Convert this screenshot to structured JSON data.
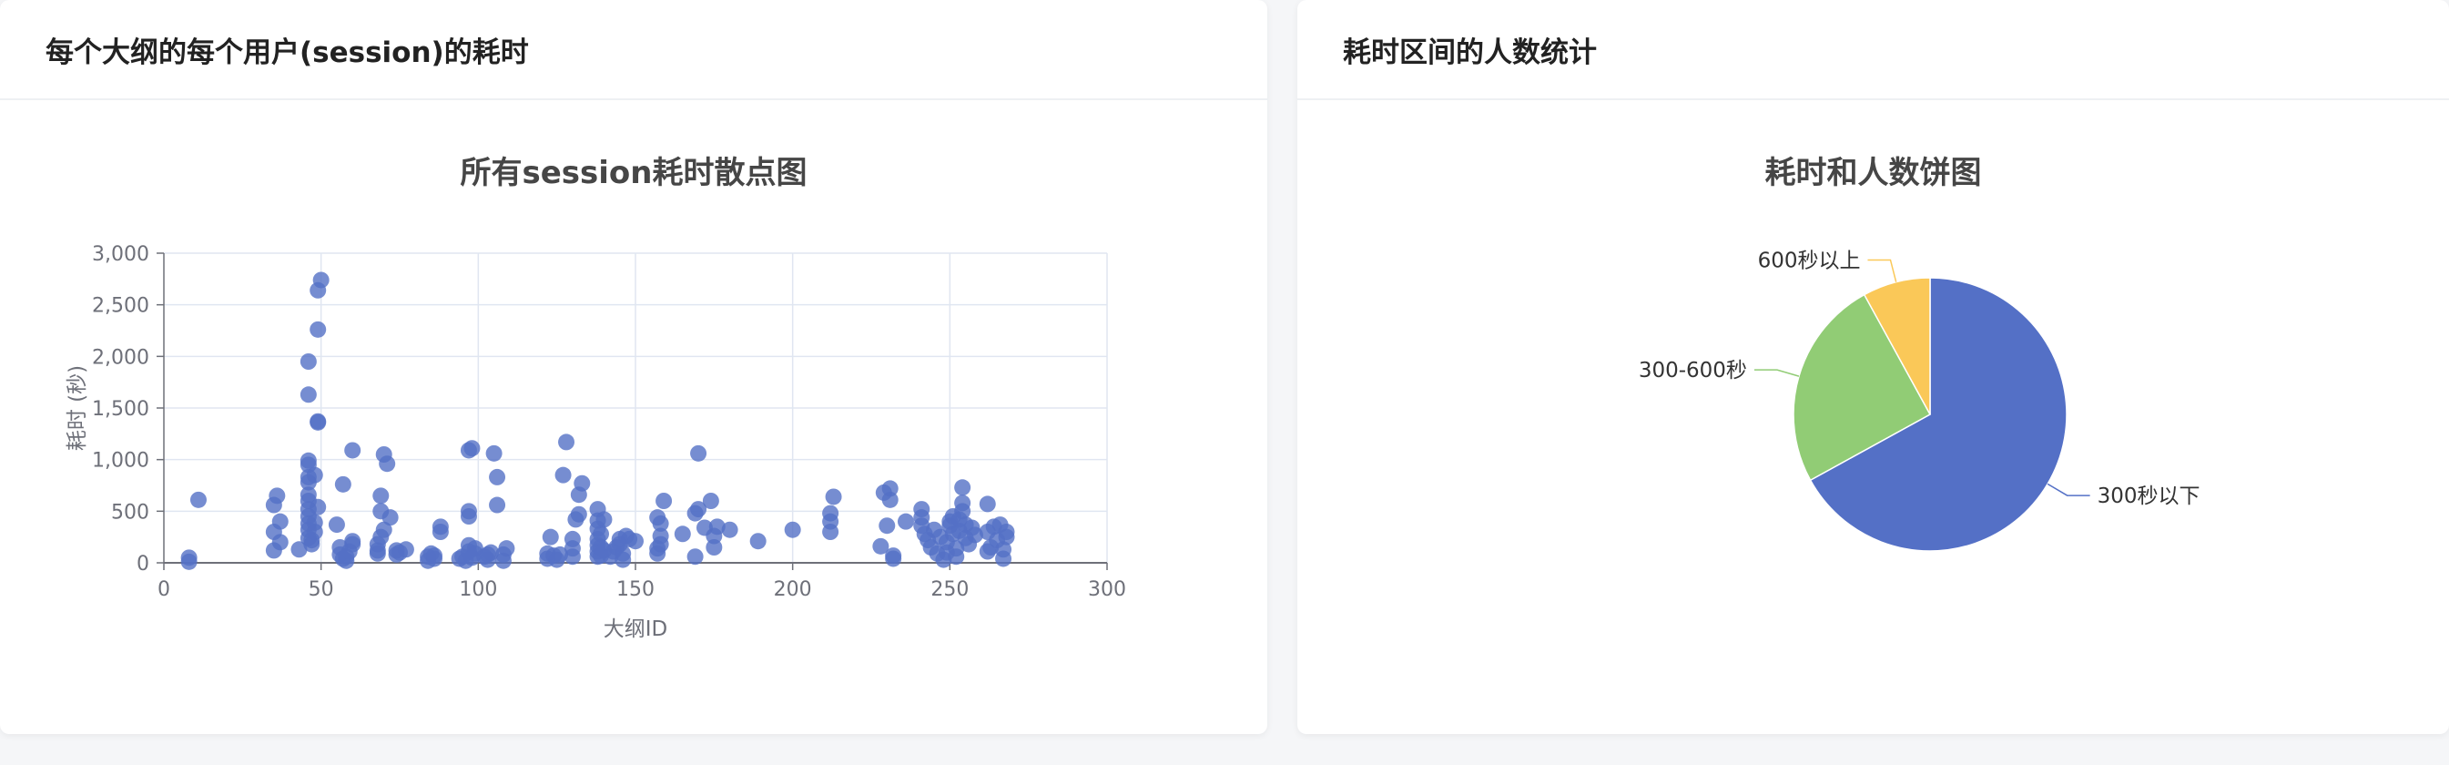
{
  "colors": {
    "blue": "#5470c6",
    "green": "#91cc75",
    "yellow": "#fac858",
    "grid": "#e0e6f1",
    "axis": "#6e7079"
  },
  "left_card": {
    "header": "每个大纲的每个用户(session)的耗时"
  },
  "right_card": {
    "header": "耗时区间的人数统计"
  },
  "chart_data": [
    {
      "type": "scatter",
      "title": "所有session耗时散点图",
      "xlabel": "大纲ID",
      "ylabel": "耗时 (秒)",
      "xlim": [
        0,
        300
      ],
      "ylim": [
        0,
        3000
      ],
      "x_ticks": [
        "0",
        "50",
        "100",
        "150",
        "200",
        "250",
        "300"
      ],
      "y_ticks": [
        "0",
        "500",
        "1,000",
        "1,500",
        "2,000",
        "2,500",
        "3,000"
      ],
      "grid": true,
      "color": "#5470c6",
      "points": [
        [
          8,
          10
        ],
        [
          8,
          50
        ],
        [
          11,
          610
        ],
        [
          35,
          120
        ],
        [
          35,
          300
        ],
        [
          35,
          560
        ],
        [
          36,
          650
        ],
        [
          37,
          200
        ],
        [
          37,
          400
        ],
        [
          43,
          130
        ],
        [
          46,
          240
        ],
        [
          46,
          320
        ],
        [
          46,
          380
        ],
        [
          46,
          450
        ],
        [
          46,
          520
        ],
        [
          46,
          600
        ],
        [
          46,
          660
        ],
        [
          46,
          780
        ],
        [
          46,
          830
        ],
        [
          46,
          950
        ],
        [
          46,
          990
        ],
        [
          46,
          1630
        ],
        [
          46,
          1950
        ],
        [
          47,
          180
        ],
        [
          47,
          220
        ],
        [
          48,
          300
        ],
        [
          48,
          390
        ],
        [
          48,
          850
        ],
        [
          49,
          540
        ],
        [
          49,
          1360
        ],
        [
          49,
          1370
        ],
        [
          49,
          2260
        ],
        [
          49,
          2640
        ],
        [
          50,
          2740
        ],
        [
          55,
          370
        ],
        [
          56,
          80
        ],
        [
          56,
          150
        ],
        [
          57,
          40
        ],
        [
          57,
          760
        ],
        [
          58,
          20
        ],
        [
          58,
          60
        ],
        [
          59,
          110
        ],
        [
          60,
          180
        ],
        [
          60,
          210
        ],
        [
          60,
          1090
        ],
        [
          68,
          90
        ],
        [
          68,
          120
        ],
        [
          68,
          180
        ],
        [
          69,
          250
        ],
        [
          69,
          650
        ],
        [
          69,
          500
        ],
        [
          70,
          320
        ],
        [
          70,
          1050
        ],
        [
          71,
          960
        ],
        [
          72,
          440
        ],
        [
          74,
          80
        ],
        [
          74,
          120
        ],
        [
          75,
          100
        ],
        [
          77,
          130
        ],
        [
          84,
          20
        ],
        [
          84,
          60
        ],
        [
          85,
          90
        ],
        [
          86,
          40
        ],
        [
          86,
          70
        ],
        [
          88,
          300
        ],
        [
          88,
          350
        ],
        [
          94,
          40
        ],
        [
          95,
          60
        ],
        [
          96,
          20
        ],
        [
          97,
          110
        ],
        [
          97,
          170
        ],
        [
          97,
          450
        ],
        [
          97,
          500
        ],
        [
          97,
          1090
        ],
        [
          98,
          1110
        ],
        [
          98,
          50
        ],
        [
          99,
          90
        ],
        [
          99,
          140
        ],
        [
          102,
          60
        ],
        [
          103,
          30
        ],
        [
          103,
          80
        ],
        [
          104,
          100
        ],
        [
          105,
          1060
        ],
        [
          106,
          560
        ],
        [
          106,
          830
        ],
        [
          108,
          20
        ],
        [
          108,
          80
        ],
        [
          109,
          140
        ],
        [
          122,
          40
        ],
        [
          122,
          90
        ],
        [
          123,
          250
        ],
        [
          124,
          70
        ],
        [
          125,
          30
        ],
        [
          126,
          80
        ],
        [
          127,
          850
        ],
        [
          128,
          1170
        ],
        [
          130,
          60
        ],
        [
          130,
          140
        ],
        [
          130,
          230
        ],
        [
          131,
          420
        ],
        [
          132,
          470
        ],
        [
          132,
          660
        ],
        [
          133,
          770
        ],
        [
          138,
          60
        ],
        [
          138,
          110
        ],
        [
          138,
          170
        ],
        [
          138,
          230
        ],
        [
          138,
          330
        ],
        [
          138,
          410
        ],
        [
          138,
          520
        ],
        [
          139,
          70
        ],
        [
          139,
          150
        ],
        [
          139,
          280
        ],
        [
          140,
          120
        ],
        [
          140,
          420
        ],
        [
          142,
          60
        ],
        [
          143,
          110
        ],
        [
          144,
          150
        ],
        [
          145,
          180
        ],
        [
          145,
          230
        ],
        [
          146,
          30
        ],
        [
          146,
          90
        ],
        [
          147,
          260
        ],
        [
          148,
          230
        ],
        [
          150,
          210
        ],
        [
          157,
          90
        ],
        [
          157,
          140
        ],
        [
          157,
          440
        ],
        [
          158,
          180
        ],
        [
          158,
          260
        ],
        [
          158,
          380
        ],
        [
          159,
          600
        ],
        [
          165,
          280
        ],
        [
          169,
          60
        ],
        [
          169,
          480
        ],
        [
          170,
          520
        ],
        [
          170,
          1060
        ],
        [
          172,
          340
        ],
        [
          174,
          600
        ],
        [
          175,
          150
        ],
        [
          175,
          260
        ],
        [
          176,
          350
        ],
        [
          180,
          320
        ],
        [
          189,
          210
        ],
        [
          200,
          320
        ],
        [
          212,
          300
        ],
        [
          212,
          400
        ],
        [
          212,
          480
        ],
        [
          213,
          640
        ],
        [
          228,
          160
        ],
        [
          229,
          680
        ],
        [
          230,
          360
        ],
        [
          231,
          610
        ],
        [
          231,
          720
        ],
        [
          232,
          70
        ],
        [
          232,
          40
        ],
        [
          236,
          400
        ],
        [
          241,
          360
        ],
        [
          241,
          440
        ],
        [
          241,
          520
        ],
        [
          242,
          280
        ],
        [
          243,
          220
        ],
        [
          244,
          150
        ],
        [
          245,
          320
        ],
        [
          246,
          90
        ],
        [
          247,
          250
        ],
        [
          248,
          30
        ],
        [
          249,
          100
        ],
        [
          249,
          200
        ],
        [
          250,
          400
        ],
        [
          250,
          360
        ],
        [
          251,
          450
        ],
        [
          251,
          280
        ],
        [
          252,
          140
        ],
        [
          252,
          60
        ],
        [
          253,
          310
        ],
        [
          253,
          420
        ],
        [
          254,
          500
        ],
        [
          254,
          580
        ],
        [
          254,
          730
        ],
        [
          255,
          240
        ],
        [
          255,
          370
        ],
        [
          256,
          180
        ],
        [
          257,
          340
        ],
        [
          258,
          270
        ],
        [
          262,
          110
        ],
        [
          262,
          300
        ],
        [
          262,
          570
        ],
        [
          263,
          150
        ],
        [
          264,
          350
        ],
        [
          265,
          220
        ],
        [
          266,
          370
        ],
        [
          267,
          40
        ],
        [
          267,
          130
        ],
        [
          268,
          250
        ],
        [
          268,
          300
        ]
      ]
    },
    {
      "type": "pie",
      "title": "耗时和人数饼图",
      "slices": [
        {
          "label": "300秒以下",
          "value": 67,
          "color": "#5470c6"
        },
        {
          "label": "300-600秒",
          "value": 25,
          "color": "#91cc75"
        },
        {
          "label": "600秒以上",
          "value": 8,
          "color": "#fac858"
        }
      ]
    }
  ]
}
